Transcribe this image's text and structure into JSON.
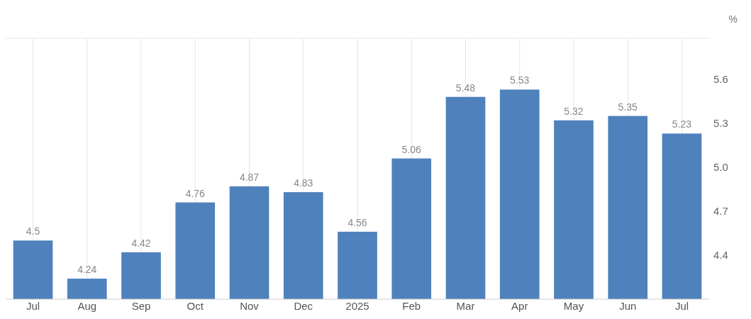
{
  "chart_data": {
    "type": "bar",
    "ylabel": "%",
    "categories": [
      "Jul",
      "Aug",
      "Sep",
      "Oct",
      "Nov",
      "Dec",
      "2025",
      "Feb",
      "Mar",
      "Apr",
      "May",
      "Jun",
      "Jul"
    ],
    "values": [
      4.5,
      4.24,
      4.42,
      4.76,
      4.87,
      4.83,
      4.56,
      5.06,
      5.48,
      5.53,
      5.32,
      5.35,
      5.23
    ],
    "color": "#4f81bd",
    "ylim": [
      4.1,
      5.88
    ],
    "yticks": [
      4.4,
      4.7,
      {
        "value": 5,
        "label": "5.0"
      },
      5.3,
      5.6
    ],
    "grid": "x",
    "data_labels": true
  }
}
